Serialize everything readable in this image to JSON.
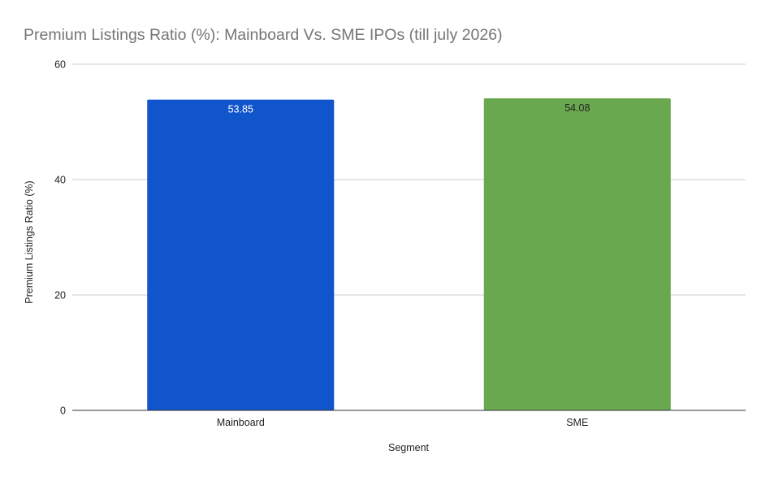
{
  "chart_data": {
    "type": "bar",
    "title": "Premium Listings Ratio (%): Mainboard Vs. SME IPOs (till july 2026)",
    "xlabel": "Segment",
    "ylabel": "Premium Listings Ratio (%)",
    "categories": [
      "Mainboard",
      "SME"
    ],
    "values": [
      53.85,
      54.08
    ],
    "data_labels": [
      "53.85",
      "54.08"
    ],
    "bar_colors": [
      "#1155cc",
      "#6aa84f"
    ],
    "data_label_colors": [
      "#ffffff",
      "#222222"
    ],
    "ylim": [
      0,
      60
    ],
    "yticks": [
      0,
      20,
      40,
      60
    ],
    "ytick_labels": [
      "0",
      "20",
      "40",
      "60"
    ],
    "grid": true,
    "legend": "none"
  }
}
